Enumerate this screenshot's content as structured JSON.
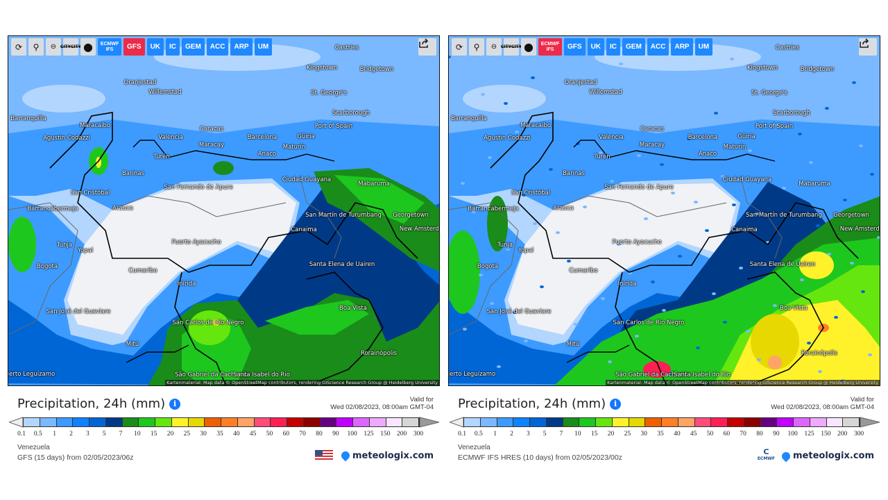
{
  "toolbar": {
    "refresh": "refresh-icon",
    "location": "location-pin-icon",
    "zoom": "zoom-out-icon",
    "city_toggle": "CITY",
    "dot": "dot-icon",
    "models": [
      "ECMWF IFS",
      "GFS",
      "UK",
      "IC",
      "GEM",
      "ACC",
      "ARP",
      "UM"
    ]
  },
  "cities": [
    "Castries",
    "Kingstown",
    "Bridgetown",
    "St. George's",
    "Oranjestad",
    "Willemstad",
    "Scarborough",
    "Barranquilla",
    "Port of Spain",
    "Maracaibo",
    "Caracas",
    "Agustin Codazzi",
    "Valencia",
    "Barcelona",
    "Güiria",
    "Maracay",
    "Maturín",
    "Anaco",
    "Turén",
    "Barinas",
    "Ciudad Guayana",
    "Mabaruma",
    "San Fernando de Apure",
    "San Cristóbal",
    "Arauca",
    "Barrancabermeja",
    "San Martín de Turumbang",
    "Georgetown",
    "New Amsterdam",
    "Canaima",
    "Puerto Ayacucho",
    "Tunja",
    "Yopal",
    "Bogotá",
    "Santa Elena de Uairen",
    "Cumaribo",
    "Inírida",
    "Boa Vista",
    "San José del Guaviare",
    "San Carlos de Río Negro",
    "Rorainópolis",
    "Mitú",
    "Puerto Leguízamo",
    "São Gabriel da Cachoeira",
    "Santa Isabel do Rio"
  ],
  "attribution": "Kartenmaterial: Map data © OpenStreetMap contributors, rendering GIScience Research Group @ Heidelberg University",
  "legend": {
    "ticks": [
      "0.1",
      "0.5",
      "1",
      "2",
      "3",
      "5",
      "7",
      "10",
      "15",
      "20",
      "25",
      "30",
      "35",
      "40",
      "45",
      "50",
      "60",
      "70",
      "80",
      "90",
      "100",
      "125",
      "150",
      "200",
      "300"
    ],
    "colors": [
      "#b3d6ff",
      "#7ab8ff",
      "#3d9bff",
      "#0f82ff",
      "#0066d6",
      "#003a87",
      "#1a8c1a",
      "#1ec71e",
      "#66e60f",
      "#fff22a",
      "#e6d800",
      "#f06000",
      "#ff7f26",
      "#ffa366",
      "#ff4d7a",
      "#ff1f55",
      "#c40000",
      "#8c0000",
      "#660080",
      "#c000ff",
      "#dd66ff",
      "#eeaaff",
      "#f8e6ff",
      "#d6d6d6"
    ]
  },
  "panels": [
    {
      "active_model": "GFS",
      "title": "Precipitation, 24h (mm)",
      "valid_label": "Valid for",
      "valid_time": "Wed 02/08/2023, 08:00am GMT-04",
      "region": "Venezuela",
      "model_run": "GFS (15 days) from 02/05/2023/06z",
      "brand": "meteologix.com",
      "provider_logo": "us-flag"
    },
    {
      "active_model": "ECMWF IFS",
      "title": "Precipitation, 24h (mm)",
      "valid_label": "Valid for",
      "valid_time": "Wed 02/08/2023, 08:00am GMT-04",
      "region": "Venezuela",
      "model_run": "ECMWF IFS HRES (10 days) from 02/05/2023/00z",
      "brand": "meteologix.com",
      "provider_logo": "ECMWF"
    }
  ]
}
